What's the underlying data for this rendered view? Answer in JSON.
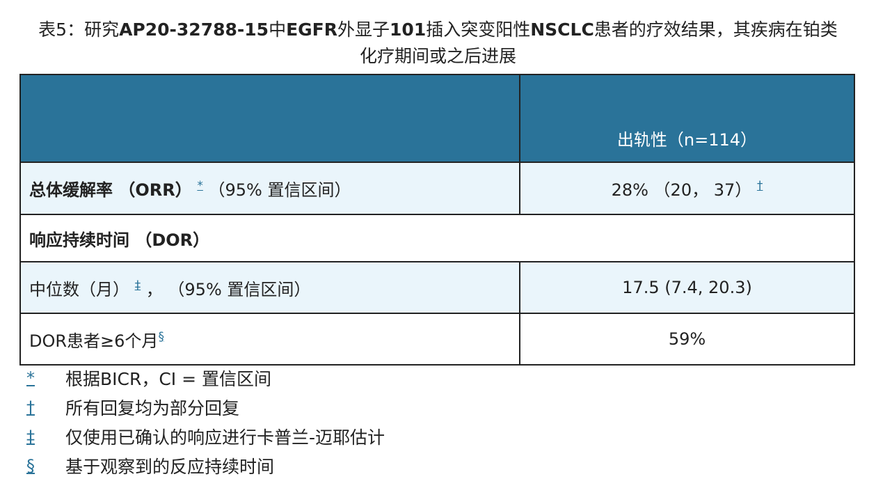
{
  "title": {
    "line1_prefix": "表5：研究",
    "line1_study": "AP20-32788-15",
    "line1_zh": "中",
    "line1_gene": "EGFR",
    "line1_mid": "外显子",
    "line1_exon": "101",
    "line1_mid2": "插入突变阳性",
    "line1_nsclc": "NSCLC",
    "line1_suffix": "患者的疗效结果，其疾病在铂类",
    "line2": "化疗期间或之后进展"
  },
  "table": {
    "header": {
      "col1": "",
      "col2": "出轨性（n=114）"
    },
    "rows": [
      {
        "label_bold": "总体缓解率 （ORR）",
        "label_mark": "*",
        "label_rest": "（95% 置信区间）",
        "value": "28% （20， 37）",
        "value_mark": "†"
      },
      {
        "label_bold": "响应持续时间 （DOR）"
      },
      {
        "label": "中位数（月）",
        "label_mark": "‡",
        "label_rest": "，  （95% 置信区间）",
        "value": "17.5 (7.4, 20.3)"
      },
      {
        "label": "DOR患者≥6个月",
        "label_mark": "§",
        "value": "59%"
      }
    ]
  },
  "footnotes": [
    {
      "symbol": "*",
      "text": "根据BICR，CI = 置信区间"
    },
    {
      "symbol": "†",
      "text": "所有回复均为部分回复"
    },
    {
      "symbol": "‡",
      "text": "仅使用已确认的响应进行卡普兰-迈耶估计"
    },
    {
      "symbol": "§",
      "text": "基于观察到的反应持续时间"
    }
  ],
  "colors": {
    "header_bg": "#2a7399",
    "alt_row_bg": "#eaf5fb",
    "footnote_symbol": "#2a7399"
  }
}
